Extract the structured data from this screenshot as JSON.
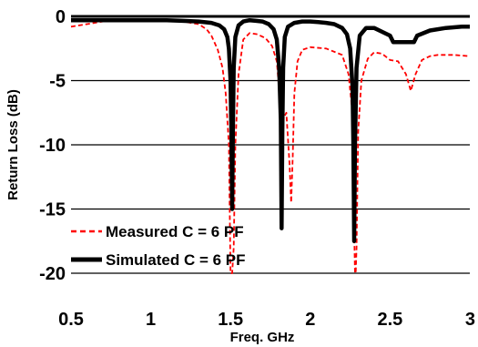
{
  "chart_data": {
    "type": "line",
    "title": "",
    "xlabel": "Freq. GHz",
    "ylabel": "Return Loss (dB)",
    "xlim": [
      0.5,
      3
    ],
    "ylim": [
      -20,
      0
    ],
    "xticks": [
      0.5,
      1,
      1.5,
      2,
      2.5,
      3
    ],
    "xtick_labels": [
      "0.5",
      "1",
      "1.5",
      "2",
      "2.5",
      "3"
    ],
    "yticks": [
      0,
      -5,
      -10,
      -15,
      -20
    ],
    "ytick_labels": [
      "0",
      "-5",
      "-10",
      "-15",
      "-20"
    ],
    "grid": "horizontal",
    "legend_position": "bottom-left",
    "series": [
      {
        "name": "Measured C = 6 PF",
        "color": "#ff0000",
        "style": "dashed",
        "x": [
          0.5,
          0.6,
          0.7,
          0.8,
          0.9,
          1.0,
          1.1,
          1.2,
          1.3,
          1.35,
          1.38,
          1.42,
          1.45,
          1.47,
          1.49,
          1.5,
          1.51,
          1.52,
          1.53,
          1.55,
          1.58,
          1.62,
          1.67,
          1.72,
          1.76,
          1.79,
          1.81,
          1.83,
          1.85,
          1.87,
          1.88,
          1.89,
          1.9,
          1.92,
          1.95,
          2.0,
          2.1,
          2.2,
          2.24,
          2.26,
          2.28,
          2.285,
          2.29,
          2.3,
          2.32,
          2.36,
          2.4,
          2.45,
          2.5,
          2.55,
          2.6,
          2.63,
          2.66,
          2.7,
          2.75,
          2.8,
          2.9,
          3.0
        ],
        "y": [
          -0.8,
          -0.6,
          -0.4,
          -0.3,
          -0.3,
          -0.3,
          -0.3,
          -0.4,
          -0.6,
          -1.0,
          -1.5,
          -2.6,
          -4.0,
          -6.0,
          -10.0,
          -20.0,
          -20.0,
          -18.0,
          -10.0,
          -4.5,
          -1.8,
          -1.3,
          -1.4,
          -1.7,
          -2.3,
          -3.5,
          -6.5,
          -8.0,
          -7.5,
          -11.5,
          -14.5,
          -11.0,
          -6.0,
          -3.5,
          -2.6,
          -2.4,
          -2.5,
          -3.0,
          -4.5,
          -7.0,
          -20.0,
          -20.0,
          -18.0,
          -9.0,
          -5.0,
          -3.3,
          -2.8,
          -2.9,
          -3.4,
          -3.5,
          -4.5,
          -5.8,
          -4.5,
          -3.4,
          -3.1,
          -3.0,
          -3.0,
          -3.1
        ]
      },
      {
        "name": "Simulated C = 6 PF",
        "color": "#000000",
        "style": "solid",
        "x": [
          0.5,
          0.7,
          0.9,
          1.0,
          1.1,
          1.2,
          1.3,
          1.38,
          1.43,
          1.46,
          1.48,
          1.49,
          1.5,
          1.505,
          1.51,
          1.515,
          1.52,
          1.53,
          1.55,
          1.58,
          1.62,
          1.66,
          1.7,
          1.74,
          1.77,
          1.79,
          1.805,
          1.815,
          1.82,
          1.825,
          1.83,
          1.84,
          1.86,
          1.9,
          1.95,
          2.0,
          2.05,
          2.1,
          2.15,
          2.2,
          2.23,
          2.25,
          2.265,
          2.27,
          2.275,
          2.28,
          2.29,
          2.31,
          2.35,
          2.4,
          2.45,
          2.5,
          2.52,
          2.6,
          2.65,
          2.67,
          2.75,
          2.85,
          2.95,
          3.0
        ],
        "y": [
          -0.3,
          -0.3,
          -0.3,
          -0.3,
          -0.3,
          -0.35,
          -0.4,
          -0.5,
          -0.7,
          -1.0,
          -1.6,
          -2.5,
          -5.0,
          -9.0,
          -15.0,
          -9.0,
          -4.0,
          -1.6,
          -0.7,
          -0.4,
          -0.3,
          -0.35,
          -0.4,
          -0.6,
          -1.0,
          -1.8,
          -4.0,
          -8.0,
          -16.5,
          -9.0,
          -4.0,
          -1.6,
          -0.8,
          -0.5,
          -0.4,
          -0.4,
          -0.45,
          -0.5,
          -0.6,
          -0.9,
          -1.4,
          -2.5,
          -5.5,
          -10.0,
          -17.5,
          -10.0,
          -4.0,
          -1.5,
          -0.9,
          -0.9,
          -1.2,
          -1.5,
          -2.0,
          -2.0,
          -2.0,
          -1.5,
          -1.1,
          -0.9,
          -0.8,
          -0.8
        ]
      }
    ]
  }
}
